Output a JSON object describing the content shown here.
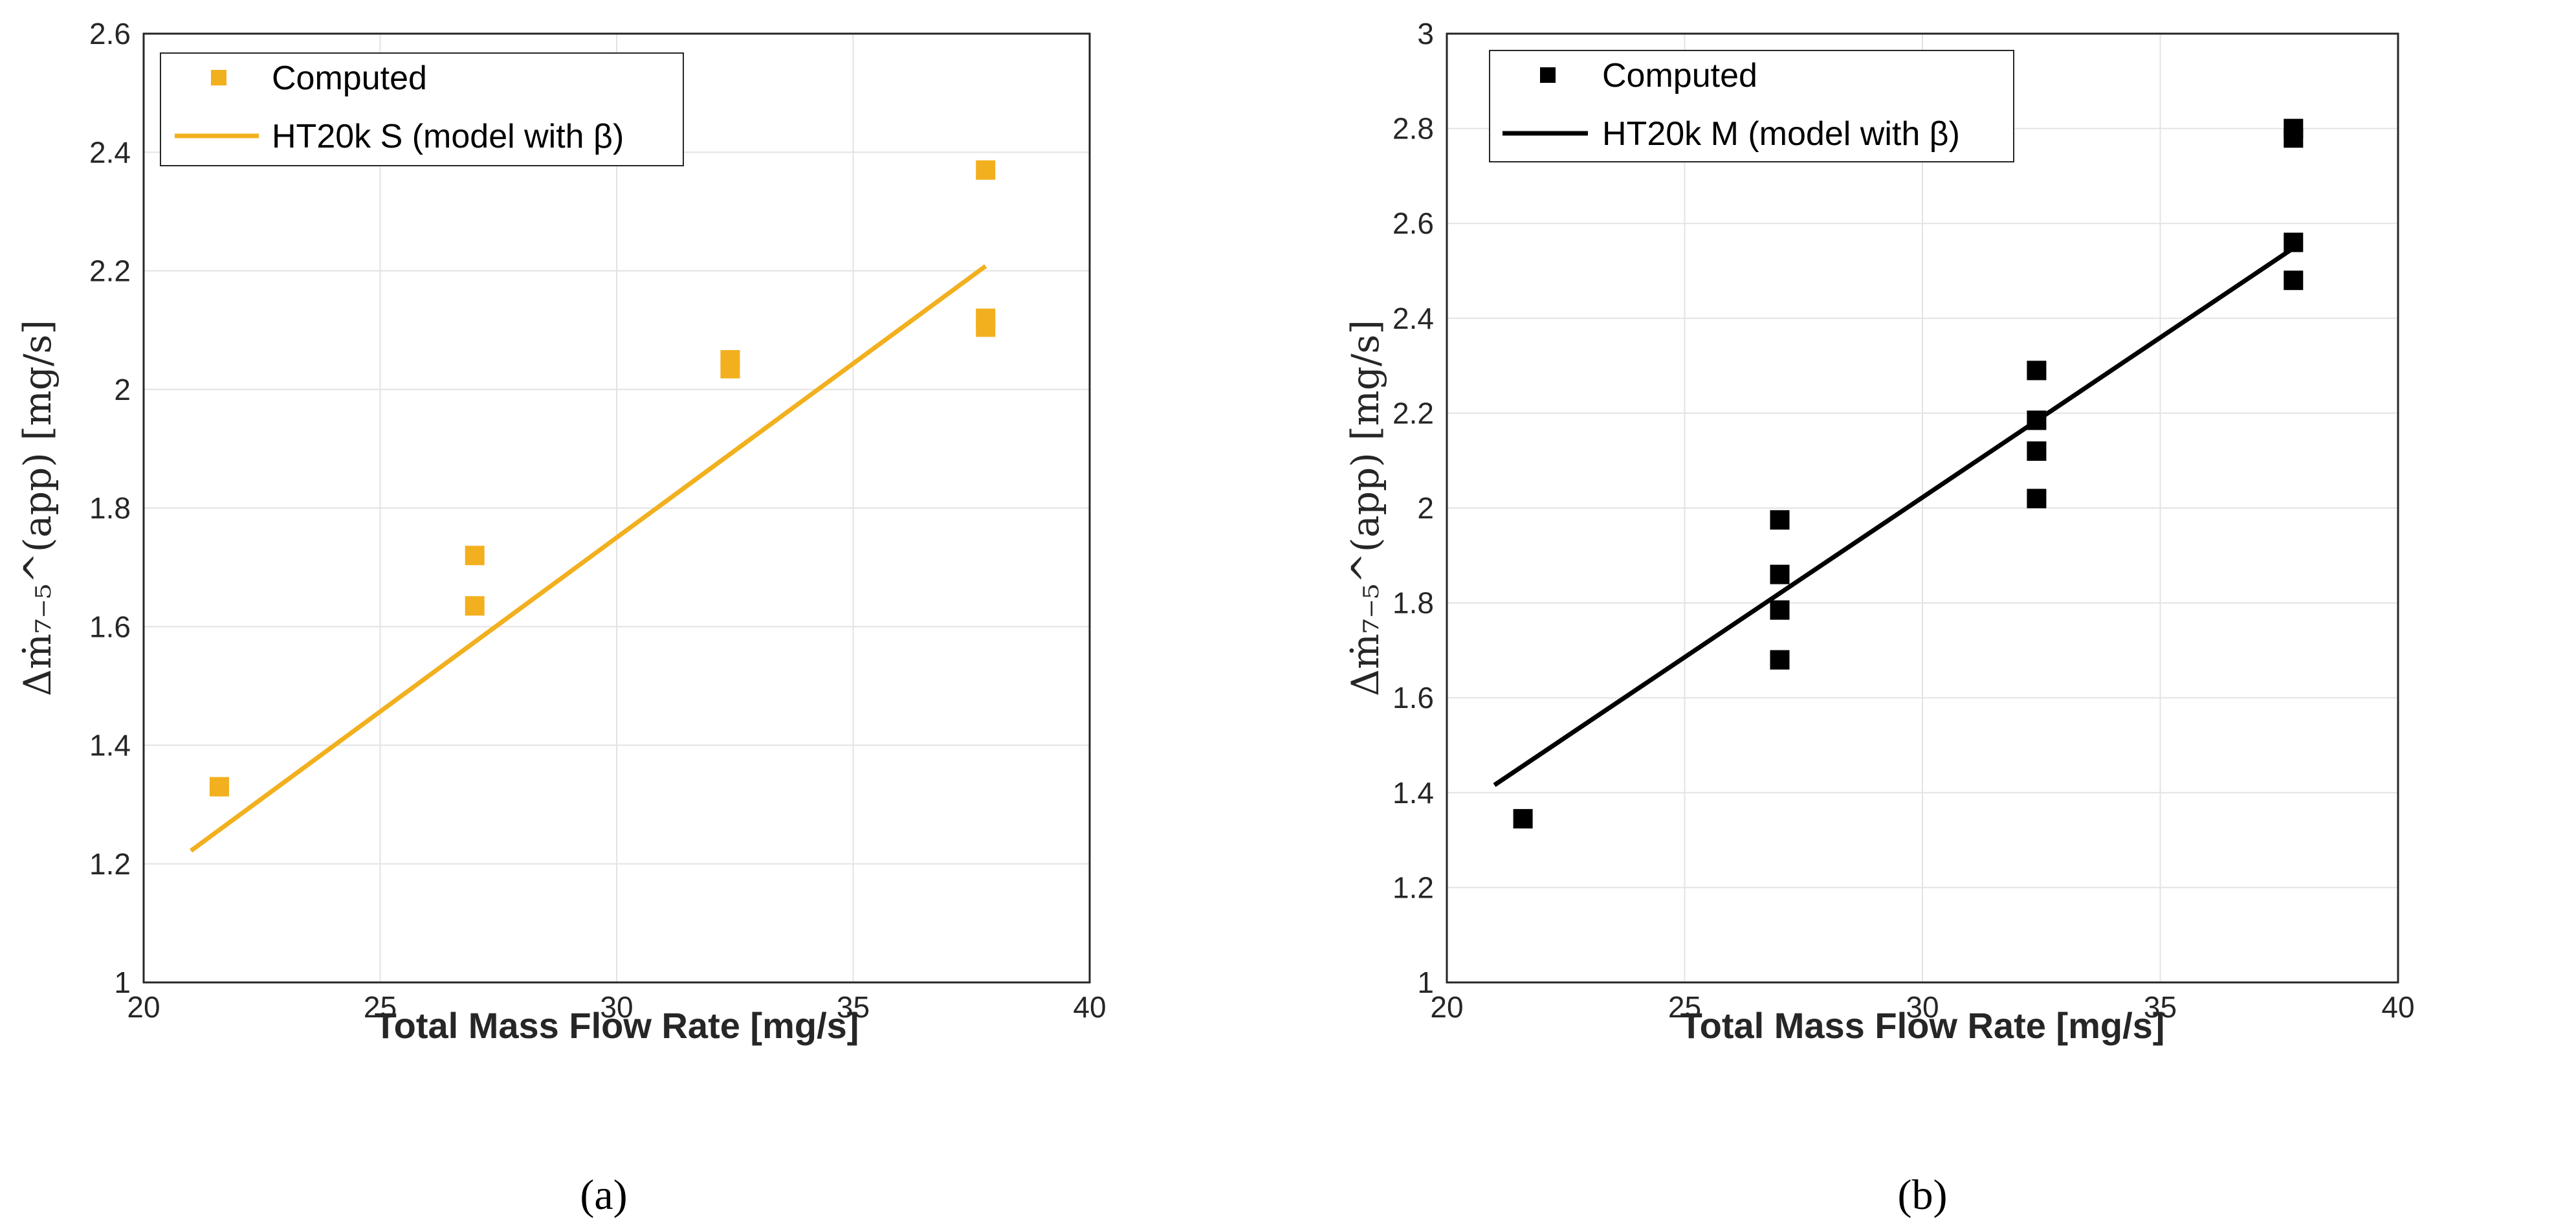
{
  "chart_data": [
    {
      "id": "a",
      "type": "scatter",
      "panel_label": "(a)",
      "xlabel": "Total Mass Flow Rate [mg/s]",
      "ylabel": "Δṁ₇₋₅^(app) [mg/s]",
      "xlim": [
        20,
        40
      ],
      "ylim": [
        1,
        2.6
      ],
      "xticks": [
        20,
        25,
        30,
        35,
        40
      ],
      "yticks": [
        1,
        1.2,
        1.4,
        1.6,
        1.8,
        2,
        2.2,
        2.4,
        2.6
      ],
      "grid": true,
      "legend_position": "top-left",
      "color": "#F2B01E",
      "series": [
        {
          "name": "Computed",
          "kind": "markers",
          "points": [
            [
              21.6,
              1.33
            ],
            [
              27.0,
              1.72
            ],
            [
              27.0,
              1.635
            ],
            [
              32.4,
              2.05
            ],
            [
              32.4,
              2.035
            ],
            [
              37.8,
              2.37
            ],
            [
              37.8,
              2.12
            ],
            [
              37.8,
              2.105
            ]
          ]
        },
        {
          "name": "HT20k S (model with β)",
          "kind": "line",
          "points": [
            [
              21.0,
              1.222
            ],
            [
              37.8,
              2.208
            ]
          ]
        }
      ]
    },
    {
      "id": "b",
      "type": "scatter",
      "panel_label": "(b)",
      "xlabel": "Total Mass Flow Rate [mg/s]",
      "ylabel": "Δṁ₇₋₅^(app) [mg/s]",
      "xlim": [
        20,
        40
      ],
      "ylim": [
        1,
        3
      ],
      "xticks": [
        20,
        25,
        30,
        35,
        40
      ],
      "yticks": [
        1,
        1.2,
        1.4,
        1.6,
        1.8,
        2,
        2.2,
        2.4,
        2.6,
        2.8,
        3
      ],
      "grid": true,
      "legend_position": "top-left",
      "color": "#000000",
      "series": [
        {
          "name": "Computed",
          "kind": "markers",
          "points": [
            [
              21.6,
              1.345
            ],
            [
              27.0,
              1.975
            ],
            [
              27.0,
              1.86
            ],
            [
              27.0,
              1.785
            ],
            [
              27.0,
              1.68
            ],
            [
              32.4,
              2.29
            ],
            [
              32.4,
              2.185
            ],
            [
              32.4,
              2.12
            ],
            [
              32.4,
              2.02
            ],
            [
              37.8,
              2.8
            ],
            [
              37.8,
              2.78
            ],
            [
              37.8,
              2.56
            ],
            [
              37.8,
              2.48
            ]
          ]
        },
        {
          "name": "HT20k M (model with β)",
          "kind": "line",
          "points": [
            [
              21.0,
              1.416
            ],
            [
              37.8,
              2.548
            ]
          ]
        }
      ]
    }
  ]
}
